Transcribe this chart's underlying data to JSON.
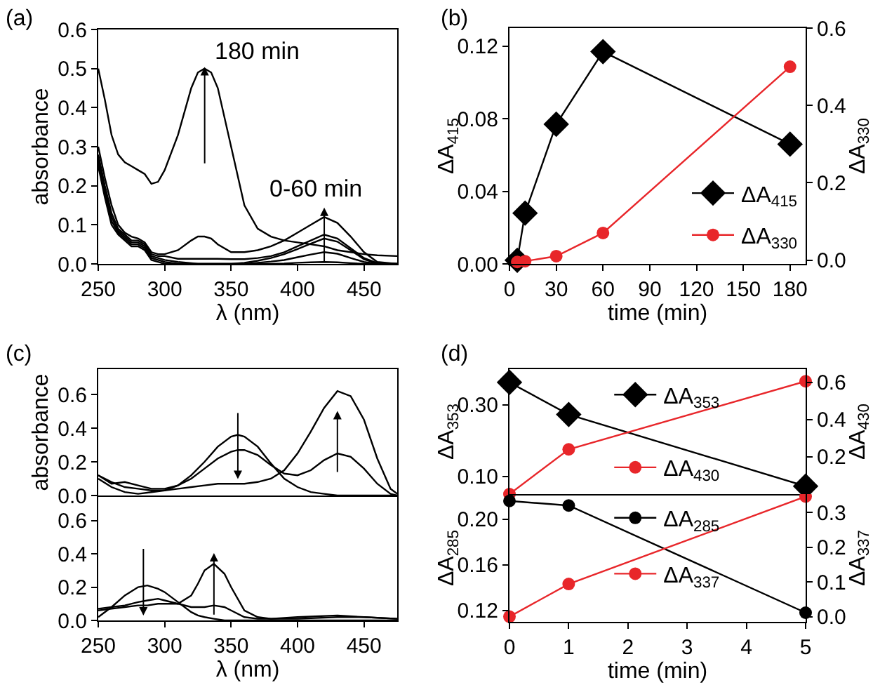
{
  "chart_data": [
    {
      "type": "line",
      "xlabel": "λ (nm)",
      "ylabel": "absorbance",
      "xlim": [
        250,
        475
      ],
      "ylim": [
        0,
        0.6
      ],
      "xticks": [
        250,
        300,
        350,
        400,
        450
      ],
      "yticks": [
        {
          "value": 0,
          "label": "0.0"
        },
        0.1,
        0.2,
        0.3,
        0.4,
        0.5,
        0.6
      ],
      "grid": false,
      "legend": false,
      "x": [
        250,
        255,
        260,
        265,
        270,
        275,
        280,
        285,
        290,
        295,
        300,
        310,
        320,
        325,
        330,
        335,
        340,
        350,
        360,
        370,
        380,
        390,
        400,
        410,
        420,
        430,
        440,
        450,
        460,
        475
      ],
      "series": [
        {
          "color": "#000000",
          "values": [
            0.5,
            0.42,
            0.33,
            0.28,
            0.26,
            0.25,
            0.24,
            0.23,
            0.205,
            0.21,
            0.24,
            0.33,
            0.45,
            0.49,
            0.5,
            0.49,
            0.45,
            0.3,
            0.15,
            0.09,
            0.07,
            0.06,
            0.055,
            0.05,
            0.045,
            0.035,
            0.03,
            0.025,
            0.022,
            0.02
          ]
        },
        {
          "color": "#000000",
          "values": [
            0.3,
            0.22,
            0.15,
            0.1,
            0.08,
            0.07,
            0.065,
            0.055,
            0.03,
            0.025,
            0.025,
            0.035,
            0.06,
            0.07,
            0.07,
            0.065,
            0.05,
            0.03,
            0.03,
            0.035,
            0.045,
            0.06,
            0.08,
            0.1,
            0.12,
            0.105,
            0.07,
            0.03,
            0.005,
            0
          ]
        },
        {
          "color": "#000000",
          "values": [
            0.28,
            0.2,
            0.13,
            0.09,
            0.075,
            0.06,
            0.06,
            0.05,
            0.025,
            0.02,
            0.02,
            0.013,
            0.013,
            0.013,
            0.013,
            0.013,
            0.013,
            0.012,
            0.012,
            0.015,
            0.02,
            0.03,
            0.045,
            0.06,
            0.075,
            0.065,
            0.04,
            0.015,
            0.002,
            0
          ]
        },
        {
          "color": "#000000",
          "values": [
            0.27,
            0.19,
            0.12,
            0.085,
            0.07,
            0.055,
            0.055,
            0.045,
            0.02,
            0.015,
            0.01,
            0.005,
            0.002,
            0,
            0,
            0,
            0,
            0,
            0.003,
            0.008,
            0.015,
            0.025,
            0.038,
            0.052,
            0.065,
            0.057,
            0.035,
            0.012,
            0.001,
            0
          ]
        },
        {
          "color": "#000000",
          "values": [
            0.26,
            0.18,
            0.11,
            0.08,
            0.065,
            0.05,
            0.05,
            0.04,
            0.015,
            0.01,
            0.005,
            0,
            0,
            0,
            0,
            0,
            0,
            0,
            0,
            0.003,
            0.006,
            0.01,
            0.017,
            0.024,
            0.03,
            0.026,
            0.015,
            0.005,
            0,
            0
          ]
        },
        {
          "color": "#000000",
          "values": [
            0.25,
            0.17,
            0.1,
            0.075,
            0.06,
            0.045,
            0.045,
            0.035,
            0.01,
            0.005,
            0,
            0,
            0,
            0,
            0,
            0,
            0,
            0,
            0,
            0,
            0,
            0.001,
            0.003,
            0.004,
            0.005,
            0.004,
            0.002,
            0,
            0,
            0
          ]
        }
      ],
      "annotations": [
        "(a)",
        {
          "text": "180 min",
          "x": 330,
          "y": 0.5
        },
        {
          "text": "0-60 min",
          "x": 420,
          "y": 0.13
        }
      ]
    },
    {
      "type": "line",
      "xlabel": "time (min)",
      "ylabel": "ΔA$_{415}$",
      "y2label": "ΔA$_{330}$",
      "xlim": [
        0,
        190
      ],
      "ylim": [
        0,
        0.13
      ],
      "y2lim": [
        -0.01,
        0.6
      ],
      "xticks": [
        0,
        30,
        60,
        90,
        120,
        150,
        180
      ],
      "yticks": [
        {
          "value": 0,
          "label": "0.00"
        },
        0.04,
        0.08,
        0.12
      ],
      "y2ticks": [
        {
          "value": 0,
          "label": "0.0"
        },
        0.2,
        0.4,
        0.6
      ],
      "grid": false,
      "legend": "bottom right",
      "x": [
        5,
        10,
        30,
        60,
        180
      ],
      "series": [
        {
          "name": "ΔA$_{415}$",
          "color": "#000000",
          "marker": "diamond",
          "values": [
            0.002,
            0.028,
            0.077,
            0.117,
            0.066
          ]
        },
        {
          "name": "ΔA$_{330}$",
          "color": "#e8262a",
          "marker": "circle",
          "axis": "y2",
          "values": [
            -0.005,
            -0.003,
            0.01,
            0.07,
            0.5
          ]
        }
      ],
      "annotations": [
        "(b)"
      ]
    },
    {
      "type": "line",
      "ylabel": "absorbance",
      "xlim": [
        250,
        475
      ],
      "ylim": [
        0,
        0.75
      ],
      "yticks": [
        {
          "value": 0,
          "label": "0.0"
        },
        0.2,
        0.4,
        0.6
      ],
      "grid": false,
      "legend": false,
      "tick_labels": "y",
      "x": [
        250,
        260,
        270,
        280,
        290,
        300,
        310,
        320,
        330,
        340,
        350,
        355,
        360,
        370,
        380,
        390,
        400,
        410,
        420,
        430,
        440,
        450,
        460,
        470,
        475
      ],
      "series": [
        {
          "color": "#000000",
          "values": [
            0.1,
            0.05,
            0.02,
            0.01,
            0.02,
            0.03,
            0.06,
            0.12,
            0.2,
            0.29,
            0.35,
            0.36,
            0.35,
            0.29,
            0.19,
            0.1,
            0.05,
            0.02,
            0.01,
            0,
            0,
            0,
            0,
            0,
            0
          ]
        },
        {
          "color": "#000000",
          "values": [
            0.12,
            0.07,
            0.08,
            0.06,
            0.04,
            0.04,
            0.06,
            0.1,
            0.16,
            0.22,
            0.26,
            0.27,
            0.27,
            0.24,
            0.18,
            0.13,
            0.12,
            0.15,
            0.21,
            0.25,
            0.23,
            0.16,
            0.07,
            0.01,
            0
          ]
        },
        {
          "color": "#000000",
          "values": [
            0.12,
            0.08,
            0.05,
            0.04,
            0.03,
            0.03,
            0.04,
            0.05,
            0.06,
            0.07,
            0.07,
            0.07,
            0.07,
            0.08,
            0.1,
            0.15,
            0.25,
            0.38,
            0.52,
            0.62,
            0.59,
            0.45,
            0.22,
            0.04,
            0.01
          ]
        }
      ],
      "annotations": [
        "(c)"
      ]
    },
    {
      "type": "line",
      "xlabel": "λ (nm)",
      "xlim": [
        250,
        475
      ],
      "ylim": [
        0,
        0.75
      ],
      "xticks": [
        250,
        300,
        350,
        400,
        450
      ],
      "yticks": [
        {
          "value": 0,
          "label": "0.0"
        },
        0.2,
        0.4,
        0.6
      ],
      "grid": false,
      "legend": false,
      "x": [
        250,
        260,
        270,
        280,
        287,
        295,
        300,
        310,
        320,
        325,
        330,
        337,
        345,
        350,
        360,
        370,
        380,
        400,
        430,
        450,
        475
      ],
      "series": [
        {
          "color": "#000000",
          "values": [
            0.02,
            0.08,
            0.15,
            0.2,
            0.21,
            0.19,
            0.17,
            0.11,
            0.05,
            0.03,
            0.02,
            0.01,
            0,
            0,
            0,
            0,
            0,
            0,
            0,
            0,
            0
          ]
        },
        {
          "color": "#000000",
          "values": [
            0.07,
            0.08,
            0.09,
            0.11,
            0.12,
            0.13,
            0.12,
            0.1,
            0.08,
            0.08,
            0.08,
            0.09,
            0.08,
            0.06,
            0.02,
            0.01,
            0.01,
            0.01,
            0.02,
            0.02,
            0.01
          ]
        },
        {
          "color": "#000000",
          "values": [
            0.06,
            0.07,
            0.08,
            0.09,
            0.09,
            0.1,
            0.1,
            0.1,
            0.15,
            0.22,
            0.3,
            0.34,
            0.28,
            0.2,
            0.06,
            0.02,
            0.01,
            0.02,
            0.03,
            0.02,
            0.01
          ]
        }
      ]
    },
    {
      "type": "line",
      "ylabel": "ΔA$_{353}$",
      "y2label": "ΔA$_{430}$",
      "xlim": [
        0,
        5
      ],
      "ylim": [
        0.05,
        0.4
      ],
      "y2lim": [
        0,
        0.67
      ],
      "yticks": [
        {
          "value": 0.1,
          "label": "0.10"
        },
        {
          "value": 0.3,
          "label": "0.30"
        }
      ],
      "y2ticks": [
        0.2,
        0.4,
        0.6
      ],
      "grid": false,
      "legend": "center",
      "tick_labels": "y",
      "x": [
        0,
        1,
        5
      ],
      "series": [
        {
          "name": "ΔA$_{353}$",
          "color": "#000000",
          "marker": "diamond",
          "values": [
            0.363,
            0.273,
            0.072
          ]
        },
        {
          "name": "ΔA$_{430}$",
          "color": "#e8262a",
          "marker": "circle",
          "axis": "y2",
          "values": [
            0,
            0.24,
            0.605
          ]
        }
      ],
      "annotations": [
        "(d)"
      ]
    },
    {
      "type": "line",
      "xlabel": "time (min)",
      "ylabel": "ΔA$_{285}$",
      "y2label": "ΔA$_{337}$",
      "xlim": [
        0,
        5
      ],
      "ylim": [
        0.11,
        0.222
      ],
      "y2lim": [
        -0.015,
        0.353
      ],
      "xticks": [
        0,
        1,
        2,
        3,
        4,
        5
      ],
      "yticks": [
        0.12,
        0.16,
        {
          "value": 0.2,
          "label": "0.20"
        }
      ],
      "y2ticks": [
        {
          "value": 0,
          "label": "0.0"
        },
        0.1,
        0.2,
        0.3
      ],
      "grid": false,
      "legend": "top",
      "x": [
        0,
        1,
        5
      ],
      "series": [
        {
          "name": "ΔA$_{285}$",
          "color": "#000000",
          "marker": "circle",
          "values": [
            0.216,
            0.212,
            0.118
          ]
        },
        {
          "name": "ΔA$_{337}$",
          "color": "#e8262a",
          "marker": "circle",
          "axis": "y2",
          "values": [
            0,
            0.094,
            0.346
          ]
        }
      ]
    }
  ]
}
